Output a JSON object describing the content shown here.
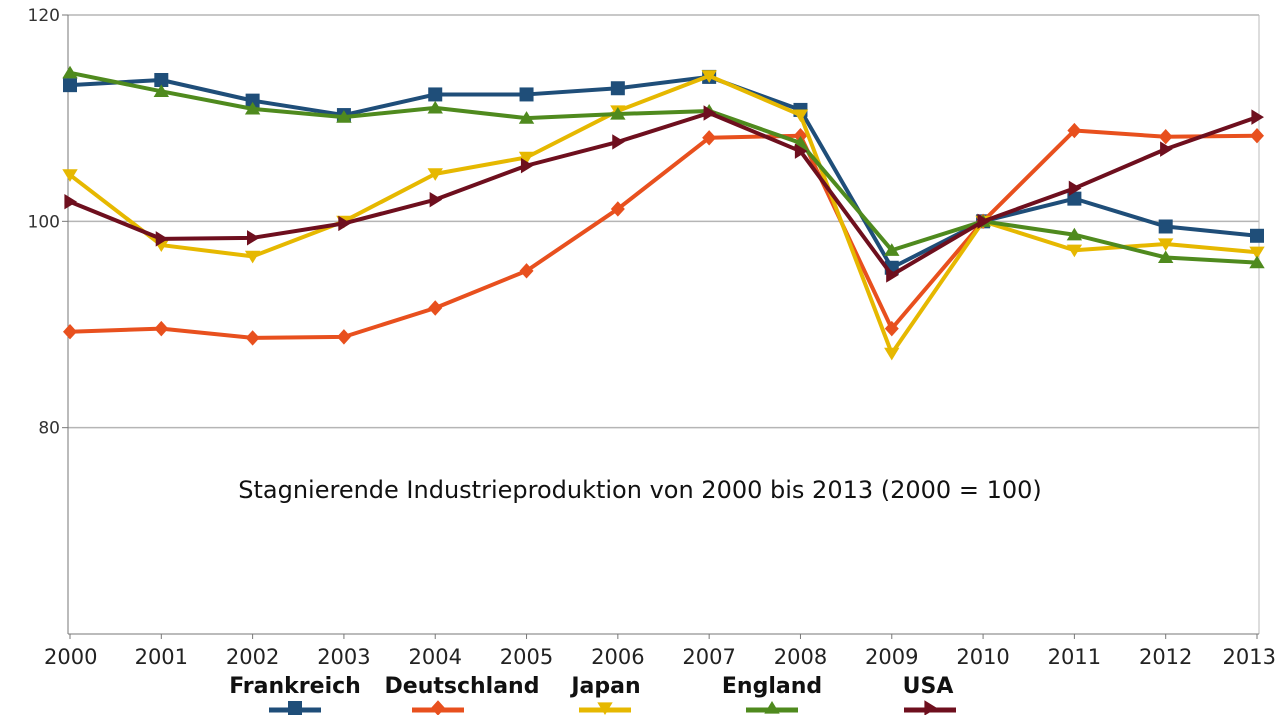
{
  "chart_data": {
    "type": "line",
    "title": "Stagnierende Industrieproduktion von 2000 bis 2013 (2000 = 100)",
    "xlabel": "",
    "ylabel": "",
    "x": [
      "2000",
      "2001",
      "2002",
      "2003",
      "2004",
      "2005",
      "2006",
      "2007",
      "2008",
      "2009",
      "2010",
      "2011",
      "2012",
      "2013"
    ],
    "ylim": [
      60,
      120
    ],
    "yticks": [
      {
        "value": 120,
        "label": "120"
      },
      {
        "value": 100,
        "label": "100"
      },
      {
        "value": 80,
        "label": "80"
      }
    ],
    "grid": true,
    "legend_position": "bottom",
    "series": [
      {
        "name": "Frankreich",
        "color": "#1f4e79",
        "marker": "square",
        "values": [
          113.2,
          113.7,
          111.7,
          110.3,
          112.3,
          112.3,
          112.9,
          114.0,
          110.8,
          95.5,
          100.0,
          102.2,
          99.5,
          98.6
        ]
      },
      {
        "name": "Deutschland",
        "color": "#e8501e",
        "marker": "diamond",
        "values": [
          89.3,
          89.6,
          88.7,
          88.8,
          91.6,
          95.2,
          101.2,
          108.1,
          108.3,
          89.6,
          100.0,
          108.8,
          108.2,
          108.3
        ]
      },
      {
        "name": "Japan",
        "color": "#e6b800",
        "marker": "triangle-down",
        "values": [
          104.5,
          97.7,
          96.6,
          100.0,
          104.6,
          106.2,
          110.7,
          114.1,
          110.3,
          87.2,
          100.0,
          97.2,
          97.8,
          97.0
        ]
      },
      {
        "name": "England",
        "color": "#4f8a1e",
        "marker": "triangle-up",
        "values": [
          114.4,
          112.6,
          110.9,
          110.1,
          111.0,
          110.0,
          110.4,
          110.7,
          107.6,
          97.2,
          100.0,
          98.7,
          96.5,
          96.0
        ]
      },
      {
        "name": "USA",
        "color": "#6e0f1e",
        "marker": "triangle-right",
        "values": [
          101.9,
          98.3,
          98.4,
          99.8,
          102.1,
          105.4,
          107.7,
          110.5,
          106.8,
          94.8,
          100.0,
          103.2,
          107.0,
          110.1
        ]
      }
    ]
  }
}
